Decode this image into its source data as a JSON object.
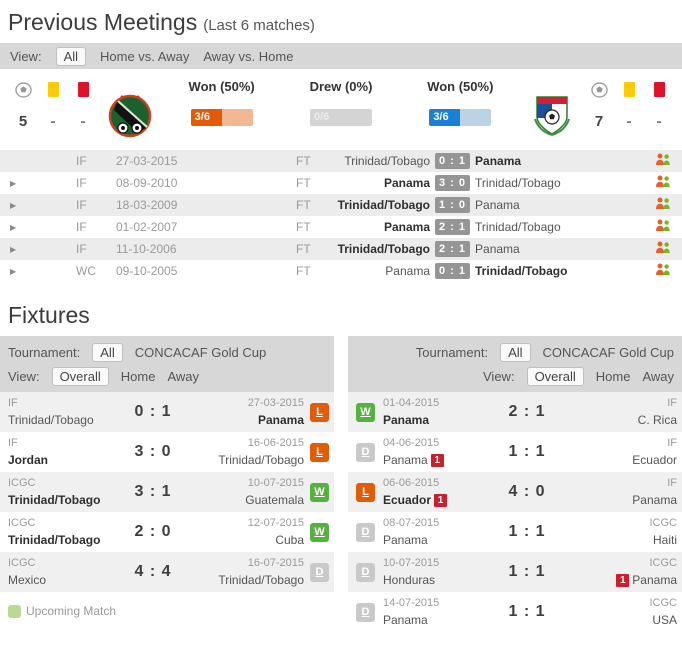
{
  "colors": {
    "toolbar_bg": "#d7d7d7",
    "won_orange": "#e45b06",
    "won_orange_bg": "#f2b893",
    "drew_gray": "#c4c4c4",
    "drew_gray_bg": "#d4d4d4",
    "won_blue": "#1a80d2",
    "won_blue_bg": "#bcd3e6",
    "win_badge": "#55b23e",
    "loss_badge": "#e45b06",
    "draw_badge": "#c9c9c9",
    "yellow_card": "#fcca06",
    "red_card": "#dd1427",
    "red_count": "#c8202d",
    "upcoming_green": "#b8da92",
    "score_badge_bg": "#959595"
  },
  "icons": {
    "expand_arrow": "▶",
    "soccer_ball": "soccer-ball",
    "yellow_card": "yellow-card",
    "red_card": "red-card",
    "head_to_head": "two-person-silhouettes",
    "upcoming_swatch": "green-square"
  },
  "previous_meetings": {
    "title": "Previous Meetings",
    "subtitle": "(Last 6 matches)",
    "toolbar": {
      "view_label": "View:",
      "options": [
        "All",
        "Home vs. Away",
        "Away vs. Home"
      ],
      "selected": "All"
    },
    "stats": {
      "home_totals": {
        "goals": "5",
        "yellow": "-",
        "red": "-"
      },
      "away_totals": {
        "goals": "7",
        "yellow": "-",
        "red": "-"
      },
      "home_team_logo": "Trinidad/Tobago crest",
      "away_team_logo": "Panama crest",
      "bars": [
        {
          "label": "Won (50%)",
          "value": "3/6",
          "pct": 50,
          "theme": "orange"
        },
        {
          "label": "Drew (0%)",
          "value": "0/6",
          "pct": 0,
          "theme": "gray"
        },
        {
          "label": "Won (50%)",
          "value": "3/6",
          "pct": 50,
          "theme": "blue"
        }
      ]
    },
    "matches": [
      {
        "comp": "IF",
        "date": "27-03-2015",
        "status": "FT",
        "home": "Trinidad/Tobago",
        "score": "0 : 1",
        "away": "Panama",
        "winner": "away",
        "expandable": false
      },
      {
        "comp": "IF",
        "date": "08-09-2010",
        "status": "FT",
        "home": "Panama",
        "score": "3 : 0",
        "away": "Trinidad/Tobago",
        "winner": "home",
        "expandable": true
      },
      {
        "comp": "IF",
        "date": "18-03-2009",
        "status": "FT",
        "home": "Trinidad/Tobago",
        "score": "1 : 0",
        "away": "Panama",
        "winner": "home",
        "expandable": true
      },
      {
        "comp": "IF",
        "date": "01-02-2007",
        "status": "FT",
        "home": "Panama",
        "score": "2 : 1",
        "away": "Trinidad/Tobago",
        "winner": "home",
        "expandable": true
      },
      {
        "comp": "IF",
        "date": "11-10-2006",
        "status": "FT",
        "home": "Trinidad/Tobago",
        "score": "2 : 1",
        "away": "Panama",
        "winner": "home",
        "expandable": true
      },
      {
        "comp": "WC",
        "date": "09-10-2005",
        "status": "FT",
        "home": "Panama",
        "score": "0 : 1",
        "away": "Trinidad/Tobago",
        "winner": "away",
        "expandable": true
      }
    ]
  },
  "fixtures": {
    "title": "Fixtures",
    "toolbar": {
      "tournament_label": "Tournament:",
      "tournament_options": [
        "All",
        "CONCACAF Gold Cup"
      ],
      "tournament_selected": "All",
      "view_label": "View:",
      "view_options": [
        "Overall",
        "Home",
        "Away"
      ],
      "view_selected": "Overall"
    },
    "left_rows": [
      {
        "comp": "IF",
        "home": "Trinidad/Tobago",
        "score": "0 : 1",
        "date": "27-03-2015",
        "away": "Panama",
        "result": "L"
      },
      {
        "comp": "IF",
        "home": "Jordan",
        "score": "3 : 0",
        "date": "16-06-2015",
        "away": "Trinidad/Tobago",
        "result": "L"
      },
      {
        "comp": "ICGC",
        "home": "Trinidad/Tobago",
        "score": "3 : 1",
        "date": "10-07-2015",
        "away": "Guatemala",
        "result": "W"
      },
      {
        "comp": "ICGC",
        "home": "Trinidad/Tobago",
        "score": "2 : 0",
        "date": "12-07-2015",
        "away": "Cuba",
        "result": "W"
      },
      {
        "comp": "ICGC",
        "home": "Mexico",
        "score": "4 : 4",
        "date": "16-07-2015",
        "away": "Trinidad/Tobago",
        "result": "D"
      }
    ],
    "right_rows": [
      {
        "result": "W",
        "date": "01-04-2015",
        "home": "Panama",
        "score": "2 : 1",
        "comp": "IF",
        "away": "C. Rica"
      },
      {
        "result": "D",
        "date": "04-06-2015",
        "home": "Panama",
        "home_red": "1",
        "score": "1 : 1",
        "comp": "IF",
        "away": "Ecuador"
      },
      {
        "result": "L",
        "date": "06-06-2015",
        "home": "Ecuador",
        "home_red": "1",
        "score": "4 : 0",
        "comp": "IF",
        "away": "Panama"
      },
      {
        "result": "D",
        "date": "08-07-2015",
        "home": "Panama",
        "score": "1 : 1",
        "comp": "ICGC",
        "away": "Haiti"
      },
      {
        "result": "D",
        "date": "10-07-2015",
        "home": "Honduras",
        "score": "1 : 1",
        "comp": "ICGC",
        "away": "Panama",
        "away_red": "1"
      },
      {
        "result": "D",
        "date": "14-07-2015",
        "home": "Panama",
        "score": "1 : 1",
        "comp": "ICGC",
        "away": "USA"
      }
    ],
    "legend": "Upcoming Match"
  }
}
